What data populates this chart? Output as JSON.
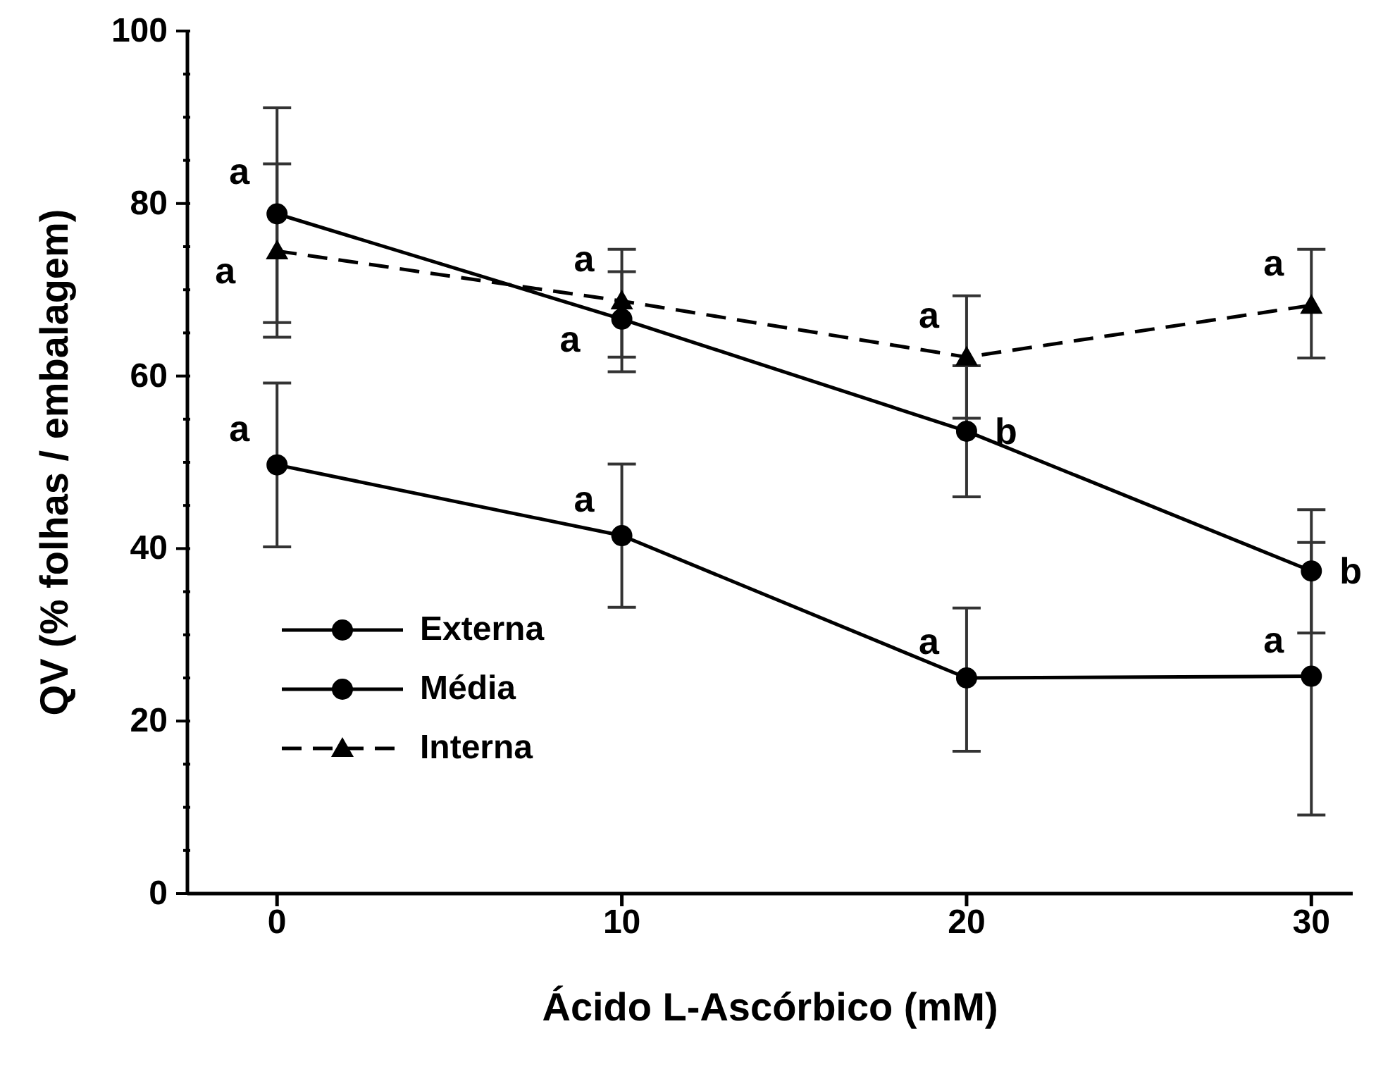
{
  "chart_data": {
    "type": "line",
    "xlabel": "Ácido L-Ascórbico (mM)",
    "ylabel": "QV (% folhas / embalagem)",
    "x": [
      0,
      10,
      20,
      30
    ],
    "series": [
      {
        "name": "Externa",
        "color": "#000000",
        "marker": "circle",
        "line_style": "solid",
        "values": [
          49.7,
          41.5,
          25.0,
          25.2
        ],
        "errors": [
          [
            40.2,
            59.2
          ],
          [
            33.2,
            49.8
          ],
          [
            16.5,
            33.1
          ],
          [
            9.1,
            40.7
          ]
        ]
      },
      {
        "name": "Média",
        "color": "#000000",
        "marker": "circle",
        "line_style": "solid",
        "values": [
          78.8,
          66.6,
          53.6,
          37.4
        ],
        "errors": [
          [
            66.2,
            91.1
          ],
          [
            60.5,
            72.1
          ],
          [
            46.0,
            61.2
          ],
          [
            30.2,
            44.5
          ]
        ]
      },
      {
        "name": "Interna",
        "color": "#000000",
        "marker": "triangle",
        "line_style": "dashed",
        "values": [
          74.5,
          68.7,
          62.2,
          68.2
        ],
        "errors": [
          [
            64.5,
            84.6
          ],
          [
            62.2,
            74.7
          ],
          [
            55.1,
            69.3
          ],
          [
            62.1,
            74.7
          ]
        ]
      }
    ],
    "xlim": [
      -2.6,
      31.2
    ],
    "xticks": [
      0,
      10,
      20,
      30
    ],
    "ylim": [
      0,
      100
    ],
    "yticks": [
      0,
      {
        "value": 5,
        "label": null
      },
      20,
      {
        "value": 15,
        "label": null
      },
      {
        "value": 10,
        "label": null
      },
      40,
      60,
      80,
      100,
      {
        "value": 25,
        "label": null
      },
      {
        "value": 30,
        "label": null
      },
      {
        "value": 35,
        "label": null
      },
      {
        "value": 45,
        "label": null
      },
      {
        "value": 50,
        "label": null
      },
      {
        "value": 55,
        "label": null
      },
      {
        "value": 65,
        "label": null
      },
      {
        "value": 70,
        "label": null
      },
      {
        "value": 75,
        "label": null
      },
      {
        "value": 85,
        "label": null
      },
      {
        "value": 90,
        "label": null
      },
      {
        "value": 95,
        "label": null
      }
    ],
    "legend": "bottom left",
    "annotations": [
      {
        "text": "a",
        "x": 0,
        "y": 78.8
      },
      {
        "text": "a",
        "x": 0,
        "y": 74.5
      },
      {
        "text": "a",
        "x": 0,
        "y": 49.7
      },
      {
        "text": "a",
        "x": 10,
        "y": 68.7
      },
      {
        "text": "a",
        "x": 10,
        "y": 66.6
      },
      {
        "text": "a",
        "x": 10,
        "y": 41.5
      },
      {
        "text": "a",
        "x": 20,
        "y": 62.2
      },
      {
        "text": "b",
        "x": 20,
        "y": 53.6
      },
      {
        "text": "a",
        "x": 20,
        "y": 25.0
      },
      {
        "text": "a",
        "x": 30,
        "y": 68.2
      },
      {
        "text": "b",
        "x": 30,
        "y": 37.4
      },
      {
        "text": "a",
        "x": 30,
        "y": 25.2
      }
    ]
  }
}
